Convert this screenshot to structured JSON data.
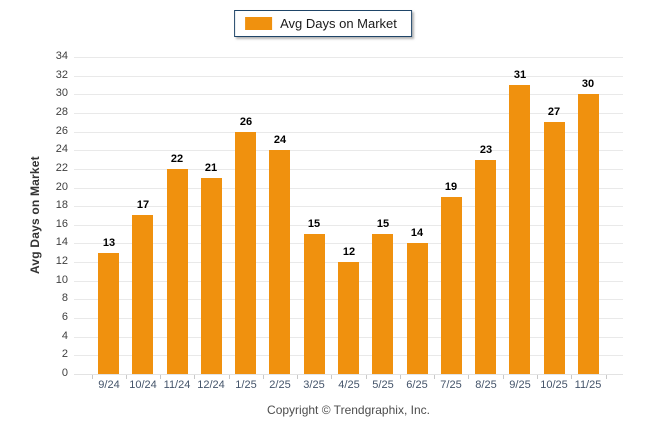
{
  "legend": {
    "label": "Avg Days on Market",
    "swatch_icon": "legend-swatch"
  },
  "footer": {
    "copyright": "Copyright © Trendgraphix, Inc."
  },
  "colors": {
    "bar": "#f0910e",
    "grid": "#e9e9e9",
    "legend_border": "#1f4568",
    "axis_text": "#44546a",
    "value_label": "#000000",
    "copyright_text": "#4d4d4d"
  },
  "chart_data": {
    "type": "bar",
    "title": "",
    "categories": [
      "9/24",
      "10/24",
      "11/24",
      "12/24",
      "1/25",
      "2/25",
      "3/25",
      "4/25",
      "5/25",
      "6/25",
      "7/25",
      "8/25",
      "9/25",
      "10/25",
      "11/25"
    ],
    "values": [
      13,
      17,
      22,
      21,
      26,
      24,
      15,
      12,
      15,
      14,
      19,
      23,
      31,
      27,
      30
    ],
    "series_name": "Avg Days on Market",
    "xlabel": "",
    "ylabel": "Avg Days on Market",
    "ylim": [
      0,
      34
    ],
    "yticks": [
      0,
      2,
      4,
      6,
      8,
      10,
      12,
      14,
      16,
      18,
      20,
      22,
      24,
      26,
      28,
      30,
      32,
      34
    ],
    "grid": true,
    "legend_position": "top-center",
    "value_labels": true,
    "bar_color": "#f0910e"
  }
}
